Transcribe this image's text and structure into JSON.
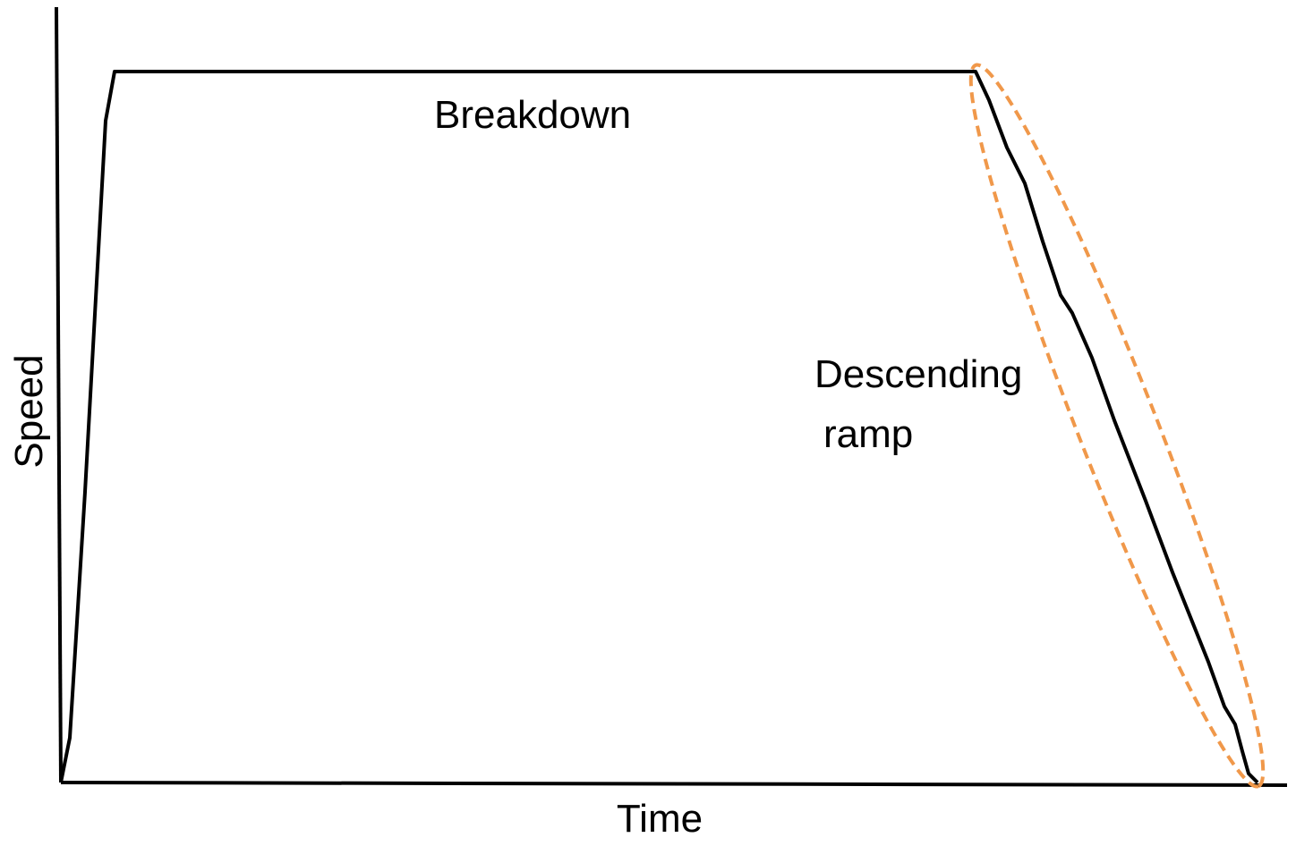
{
  "axes": {
    "y_label": "Speed",
    "x_label": "Time"
  },
  "annotations": {
    "plateau": "Breakdown",
    "ramp": [
      "Descending",
      "ramp"
    ]
  }
}
